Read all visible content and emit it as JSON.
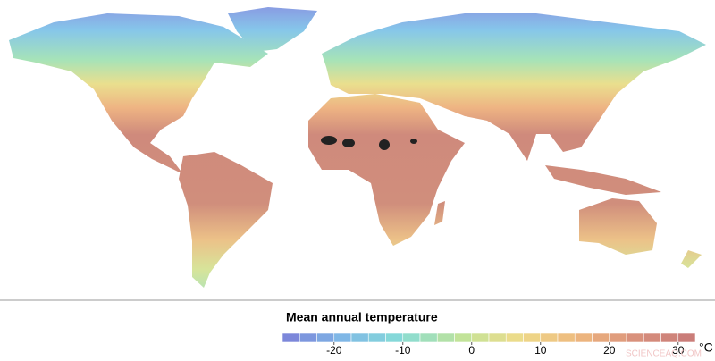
{
  "map": {
    "legend": {
      "title": "Mean annual temperature",
      "unit": "°C",
      "range": [
        -27.5,
        32.5
      ],
      "ticks": [
        -20,
        -10,
        0,
        10,
        20,
        30
      ],
      "colors": [
        "#7b7fd8",
        "#7fb6e6",
        "#86dcd8",
        "#bfe39a",
        "#eedc8a",
        "#eeb87e",
        "#d9907c",
        "#c77a78"
      ]
    },
    "watermark": "SCIENCEAQ.COM"
  }
}
